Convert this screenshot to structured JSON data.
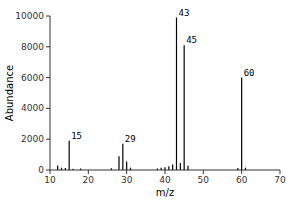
{
  "chart_data": {
    "type": "bar",
    "xlabel": "m/z",
    "ylabel": "Abundance",
    "x": [
      12,
      13,
      14,
      15,
      16,
      18,
      26,
      28,
      29,
      30,
      31,
      38,
      39,
      40,
      41,
      42,
      43,
      44,
      45,
      46,
      59,
      60,
      61
    ],
    "values": [
      300,
      150,
      130,
      1900,
      80,
      100,
      120,
      900,
      1700,
      550,
      150,
      100,
      150,
      180,
      250,
      350,
      9900,
      450,
      8100,
      280,
      130,
      6000,
      150
    ],
    "color": "#000000",
    "xlim": [
      10,
      70
    ],
    "ylim": [
      0,
      10000
    ],
    "xticks": [
      10,
      20,
      30,
      40,
      50,
      60,
      70
    ],
    "yticks": [
      0,
      2000,
      4000,
      6000,
      8000,
      10000
    ],
    "grid": false,
    "annotations": [
      {
        "text": "15",
        "x": 15,
        "y": 1900
      },
      {
        "text": "29",
        "x": 29,
        "y": 1700
      },
      {
        "text": "43",
        "x": 43,
        "y": 9900
      },
      {
        "text": "45",
        "x": 45,
        "y": 8100
      },
      {
        "text": "60",
        "x": 60,
        "y": 6000
      }
    ]
  }
}
